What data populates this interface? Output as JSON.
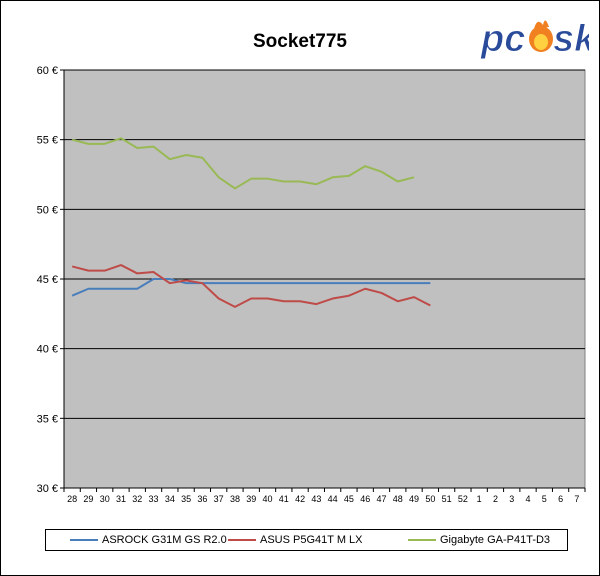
{
  "chart_data": {
    "type": "line",
    "title": "Socket775",
    "xlabel": "",
    "ylabel": "",
    "categories": [
      "28",
      "29",
      "30",
      "31",
      "32",
      "33",
      "34",
      "35",
      "36",
      "37",
      "38",
      "39",
      "40",
      "41",
      "42",
      "43",
      "44",
      "45",
      "46",
      "47",
      "48",
      "49",
      "50",
      "51",
      "52",
      "1",
      "2",
      "3",
      "4",
      "5",
      "6",
      "7"
    ],
    "y_tick_labels": [
      "30 €",
      "35 €",
      "40 €",
      "45 €",
      "50 €",
      "55 €",
      "60 €"
    ],
    "y_ticks": [
      30,
      35,
      40,
      45,
      50,
      55,
      60
    ],
    "ylim": [
      30,
      60
    ],
    "grid": true,
    "legend_position": "bottom",
    "plot_background": "#c0c0c0",
    "series": [
      {
        "name": "ASROCK G31M GS R2.0",
        "color": "#4a7ebb",
        "values": [
          43.8,
          44.3,
          44.3,
          44.3,
          44.3,
          45.0,
          45.0,
          44.7,
          44.7,
          44.7,
          44.7,
          44.7,
          44.7,
          44.7,
          44.7,
          44.7,
          44.7,
          44.7,
          44.7,
          44.7,
          44.7,
          44.7,
          44.7,
          null,
          null,
          null,
          null,
          null,
          null,
          null,
          null,
          null
        ]
      },
      {
        "name": "ASUS P5G41T M LX",
        "color": "#be4b48",
        "values": [
          45.9,
          45.6,
          45.6,
          46.0,
          45.4,
          45.5,
          44.7,
          44.9,
          44.7,
          43.6,
          43.0,
          43.6,
          43.6,
          43.4,
          43.4,
          43.2,
          43.6,
          43.8,
          44.3,
          44.0,
          43.4,
          43.7,
          43.1,
          null,
          null,
          null,
          null,
          null,
          null,
          null,
          null,
          null
        ]
      },
      {
        "name": "Gigabyte GA-P41T-D3",
        "color": "#98b954",
        "values": [
          55.0,
          54.7,
          54.7,
          55.1,
          54.4,
          54.5,
          53.6,
          53.9,
          53.7,
          52.3,
          51.5,
          52.2,
          52.2,
          52.0,
          52.0,
          51.8,
          52.3,
          52.4,
          53.1,
          52.7,
          52.0,
          52.3,
          null,
          null,
          null,
          null,
          null,
          null,
          null,
          null,
          null,
          null
        ]
      }
    ]
  },
  "logo": {
    "text": "pcosk",
    "color_main": "#2a4a9a",
    "color_flame": "#f08020"
  }
}
